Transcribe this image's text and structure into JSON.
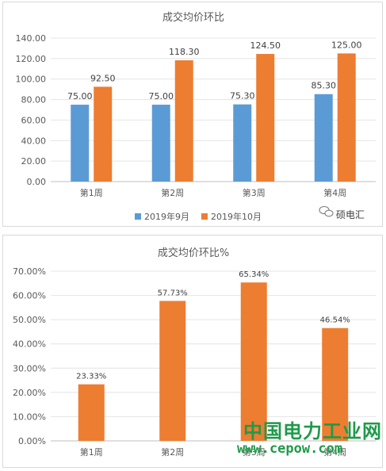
{
  "chart_data": [
    {
      "type": "bar",
      "title": "成交均价环比",
      "categories": [
        "第1周",
        "第2周",
        "第3周",
        "第4周"
      ],
      "series": [
        {
          "name": "2019年9月",
          "values": [
            75.0,
            75.0,
            75.3,
            85.3
          ],
          "color": "#5b9bd5"
        },
        {
          "name": "2019年10月",
          "values": [
            92.5,
            118.3,
            124.5,
            125.0
          ],
          "color": "#ed7d31"
        }
      ],
      "data_labels": [
        [
          "75.00",
          "75.00",
          "75.30",
          "85.30"
        ],
        [
          "92.50",
          "118.30",
          "124.50",
          "125.00"
        ]
      ],
      "ylim": [
        0,
        140
      ],
      "yticks": [
        "0.00",
        "20.00",
        "40.00",
        "60.00",
        "80.00",
        "100.00",
        "120.00",
        "140.00"
      ],
      "legend": "bottom",
      "grid": true
    },
    {
      "type": "bar",
      "title": "成交均价环比%",
      "categories": [
        "第1周",
        "第2周",
        "第3周",
        "第4周"
      ],
      "series": [
        {
          "values": [
            23.33,
            57.73,
            65.34,
            46.54
          ],
          "color": "#ed7d31"
        }
      ],
      "data_labels": [
        "23.33%",
        "57.73%",
        "65.34%",
        "46.54%"
      ],
      "ylim": [
        0,
        70
      ],
      "yticks": [
        "0.00%",
        "10.00%",
        "20.00%",
        "30.00%",
        "40.00%",
        "50.00%",
        "60.00%",
        "70.00%"
      ],
      "grid": true
    }
  ],
  "watermark": {
    "account": "硕电汇",
    "site_name": "中国电力工业网",
    "site_url": "www.cepow.com"
  }
}
